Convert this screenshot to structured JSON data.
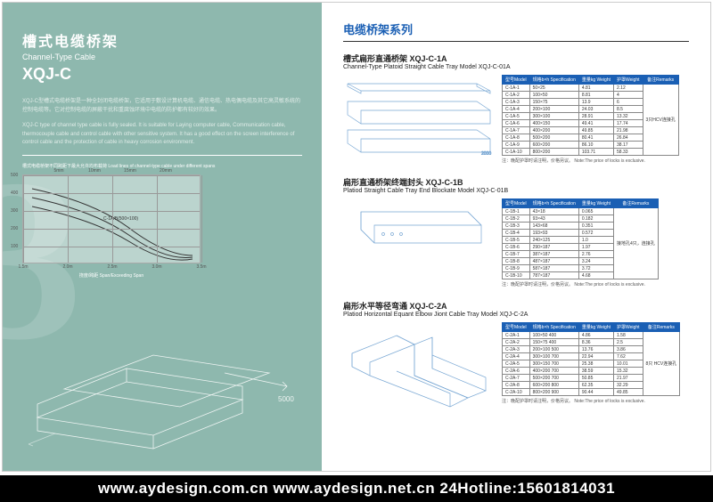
{
  "left": {
    "title_cn": "槽式电缆桥架",
    "title_en": "Channel-Type Cable",
    "model": "XQJ-C",
    "desc_cn": "XQJ-C型槽式电缆桥架是一种全封闭电缆桥架，它适用于敷设计算机电缆、通信电缆、热电偶电缆及其它高灵敏系统的控制电缆等。它对控制电缆的屏蔽干扰和重腐蚀环境中电缆的防护都有较好的效果。",
    "desc_en": "XQJ-C type of channel type cable is fully sealed. It is suitable for Laying computer cable, Communication cable, thermocouple cable and control cable with other sensitive system. It has a good effect on the screen interference of control cable and the protection of cable in heavy corrosion environment.",
    "chart_caption": "槽式电缆桥架不同跨距下最大允许均布载荷 Load lines of channel-type cable under different spans",
    "chart": {
      "legend": [
        "载荷kg/m",
        "Loading kg/m",
        "挠度/mm",
        "Flexibility"
      ],
      "x_ticks": [
        "1.5m",
        "2.0m",
        "2.5m",
        "3.0m",
        "3.5m"
      ],
      "y_ticks": [
        "100",
        "200",
        "300",
        "400",
        "500"
      ],
      "x_top": [
        "5mm",
        "10mm",
        "15mm",
        "20mm"
      ],
      "curves": [
        "C-1A/B(500×100)"
      ],
      "grid_color": "#999999",
      "line_color": "#333333"
    },
    "x_axis_label": "挠度/跨距  Span/Exceeding Span"
  },
  "right": {
    "series_title": "电缆桥架系列",
    "note_cn": "注：晚配护罩时请注明，价格另议。",
    "note_en": "Note:The price of locks is exclusive.",
    "products": [
      {
        "title_cn": "槽式扁形直通桥架 XQJ-C-1A",
        "title_en": "Channel-Type Platoid Straight Cable Tray Model XQJ-C-01A",
        "headers": [
          "型号Model",
          "规格b×h Specification",
          "重量kg Weight",
          "护罩Weight",
          "备注Remarks"
        ],
        "remark_rows": [
          {
            "text": "3只HCV连接孔",
            "span": 10
          }
        ],
        "rows": [
          [
            "C-1A-1",
            "50×25",
            "4.81",
            "2.12"
          ],
          [
            "C-1A-2",
            "100×50",
            "8.81",
            "4"
          ],
          [
            "C-1A-3",
            "150×75",
            "13.9",
            "6"
          ],
          [
            "C-1A-4",
            "200×100",
            "24.03",
            "8.5"
          ],
          [
            "C-1A-5",
            "300×100",
            "28.91",
            "13.32"
          ],
          [
            "C-1A-6",
            "400×150",
            "49.41",
            "17.74"
          ],
          [
            "C-1A-7",
            "400×200",
            "49.85",
            "21.98"
          ],
          [
            "C-1A-8",
            "500×200",
            "80.41",
            "26.84"
          ],
          [
            "C-1A-9",
            "600×200",
            "86.10",
            "38.17"
          ],
          [
            "C-1A-10",
            "800×200",
            "103.71",
            "58.33"
          ]
        ]
      },
      {
        "title_cn": "扁形直通桥架终端封头 XQJ-C-1B",
        "title_en": "Platiod Straight Cable Tray End Blockate Model XQJ-C-01B",
        "headers": [
          "型号Model",
          "规格b×h Specification",
          "重量kg Weight",
          "备注Remarks"
        ],
        "remark_rows": [
          {
            "text": "接地孔4只，连接孔",
            "span": 10
          }
        ],
        "rows": [
          [
            "C-1B-1",
            "43×18",
            "0.065"
          ],
          [
            "C-1B-2",
            "93×43",
            "0.182"
          ],
          [
            "C-1B-3",
            "143×68",
            "0.351"
          ],
          [
            "C-1B-4",
            "193×93",
            "0.572"
          ],
          [
            "C-1B-5",
            "240×125",
            "1.0"
          ],
          [
            "C-1B-6",
            "290×187",
            "1.97"
          ],
          [
            "C-1B-7",
            "387×187",
            "2.76"
          ],
          [
            "C-1B-8",
            "487×187",
            "3.24"
          ],
          [
            "C-1B-9",
            "587×187",
            "3.72"
          ],
          [
            "C-1B-10",
            "787×187",
            "4.68"
          ]
        ]
      },
      {
        "title_cn": "扁形水平等径弯通 XQJ-C-2A",
        "title_en": "Platiod Horizontal Equant Elbow Jiont Cable Tray Model XQJ-C-2A",
        "headers": [
          "型号Model",
          "规格b×h Specification",
          "重量kg Weight",
          "护罩Weight",
          "备注Remarks"
        ],
        "remark_rows": [
          {
            "text": "8只 HCV连接孔",
            "span": 9
          }
        ],
        "rows": [
          [
            "C-2A-1",
            "100×50  400",
            "4.86",
            "1.58"
          ],
          [
            "C-2A-2",
            "150×75  400",
            "8.36",
            "2.5"
          ],
          [
            "C-2A-3",
            "200×100  500",
            "13.76",
            "3.86"
          ],
          [
            "C-2A-4",
            "300×100  700",
            "22.94",
            "7.62"
          ],
          [
            "C-2A-5",
            "300×150  700",
            "25.38",
            "10.01"
          ],
          [
            "C-2A-6",
            "400×200  700",
            "38.59",
            "15.32"
          ],
          [
            "C-2A-7",
            "500×200  700",
            "50.85",
            "21.97"
          ],
          [
            "C-2A-8",
            "600×200  800",
            "62.35",
            "32.29"
          ],
          [
            "C-2A-10",
            "800×200  900",
            "90.44",
            "49.85"
          ]
        ]
      }
    ]
  },
  "footer": {
    "url1": "www.aydesign.com.cn",
    "url2": "www.aydesign.net.cn",
    "hotline_label": "24Hotline:",
    "hotline": "15601814031"
  }
}
